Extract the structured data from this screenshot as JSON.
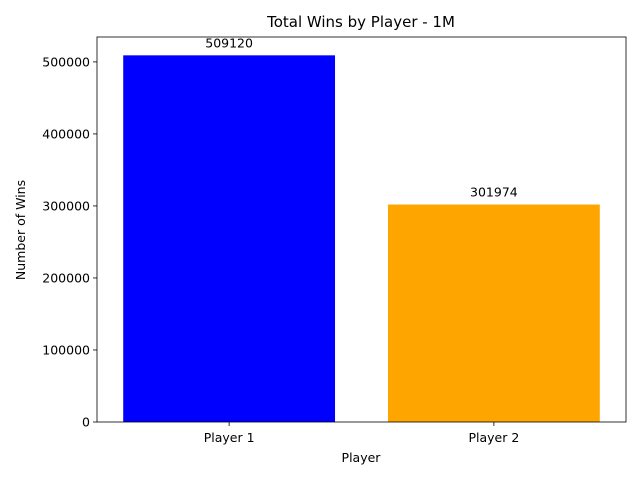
{
  "chart_data": {
    "type": "bar",
    "title": "Total Wins by Player - 1M",
    "xlabel": "Player",
    "ylabel": "Number of Wins",
    "categories": [
      "Player 1",
      "Player 2"
    ],
    "values": [
      509120,
      301974
    ],
    "value_labels": [
      "509120",
      "301974"
    ],
    "colors": [
      "#0000ff",
      "#ffa500"
    ],
    "ylim": [
      0,
      534576
    ],
    "yticks": [
      0,
      100000,
      200000,
      300000,
      400000,
      500000
    ],
    "ytick_labels": [
      "0",
      "100000",
      "200000",
      "300000",
      "400000",
      "500000"
    ],
    "grid": false,
    "legend": "none"
  }
}
